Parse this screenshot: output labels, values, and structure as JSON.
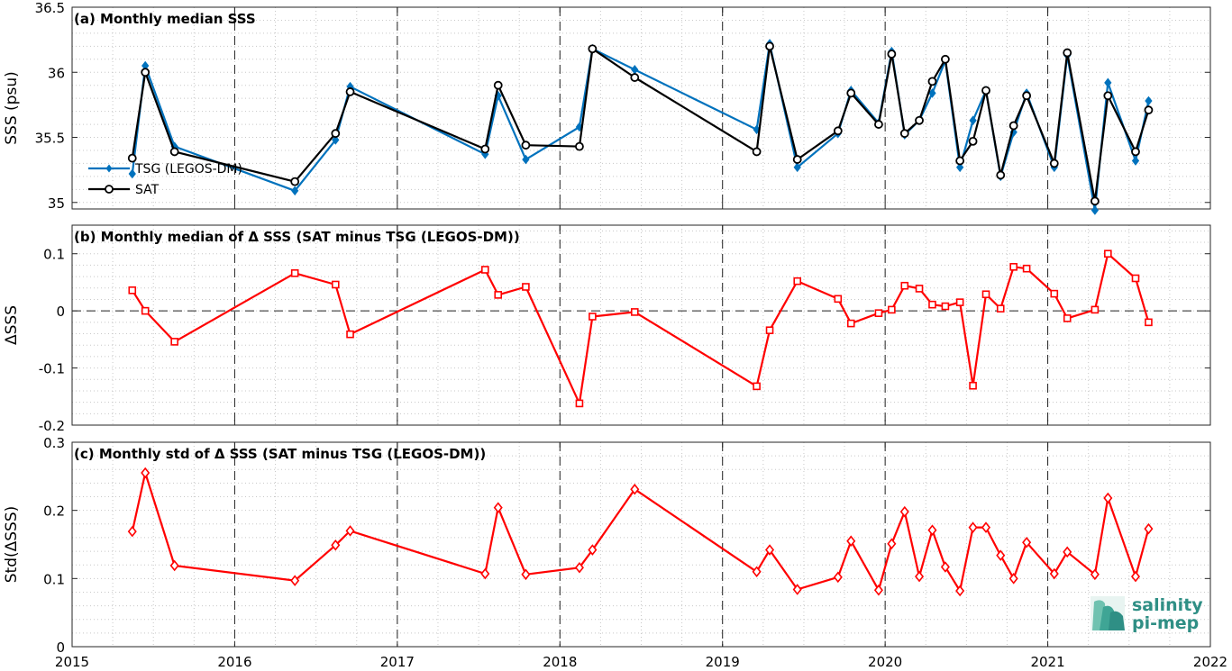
{
  "chart_data": [
    {
      "type": "line",
      "title": "(a) Monthly median SSS",
      "xlabel": "",
      "ylabel": "SSS (psu)",
      "xlim": [
        2015,
        2022
      ],
      "ylim": [
        34.95,
        36.5
      ],
      "yticks": [
        35,
        35.5,
        36,
        36.5
      ],
      "yticklabels": [
        "35",
        "35.5",
        "36",
        "36.5"
      ],
      "grid": true,
      "legend_position": "left",
      "series": [
        {
          "name": "TSG (LEGOS-DM)",
          "color": "#0072BD",
          "marker": "filled-diamond",
          "x": [
            2015.37,
            2015.45,
            2015.63,
            2016.37,
            2016.62,
            2016.71,
            2017.54,
            2017.62,
            2017.79,
            2018.12,
            2018.2,
            2018.46,
            2019.21,
            2019.29,
            2019.46,
            2019.71,
            2019.79,
            2019.96,
            2020.04,
            2020.12,
            2020.21,
            2020.29,
            2020.37,
            2020.46,
            2020.54,
            2020.62,
            2020.71,
            2020.79,
            2020.87,
            2021.04,
            2021.12,
            2021.29,
            2021.37,
            2021.54,
            2021.62
          ],
          "y": [
            35.22,
            36.05,
            35.43,
            35.09,
            35.48,
            35.89,
            35.37,
            35.82,
            35.33,
            35.58,
            36.18,
            36.02,
            35.56,
            36.22,
            35.27,
            35.53,
            35.86,
            35.61,
            36.16,
            35.52,
            35.63,
            35.84,
            36.09,
            35.27,
            35.63,
            35.86,
            35.2,
            35.54,
            35.84,
            35.27,
            36.13,
            34.94,
            35.92,
            35.32,
            35.78
          ]
        },
        {
          "name": "SAT",
          "color": "#000000",
          "marker": "open-circle",
          "x": [
            2015.37,
            2015.45,
            2015.63,
            2016.37,
            2016.62,
            2016.71,
            2017.54,
            2017.62,
            2017.79,
            2018.12,
            2018.2,
            2018.46,
            2019.21,
            2019.29,
            2019.46,
            2019.71,
            2019.79,
            2019.96,
            2020.04,
            2020.12,
            2020.21,
            2020.29,
            2020.37,
            2020.46,
            2020.54,
            2020.62,
            2020.71,
            2020.79,
            2020.87,
            2021.04,
            2021.12,
            2021.29,
            2021.37,
            2021.54,
            2021.62
          ],
          "y": [
            35.34,
            36.0,
            35.39,
            35.16,
            35.53,
            35.85,
            35.41,
            35.9,
            35.44,
            35.43,
            36.18,
            35.96,
            35.39,
            36.2,
            35.33,
            35.55,
            35.84,
            35.6,
            36.14,
            35.53,
            35.63,
            35.93,
            36.1,
            35.32,
            35.47,
            35.86,
            35.21,
            35.59,
            35.82,
            35.3,
            36.15,
            35.01,
            35.82,
            35.39,
            35.71
          ]
        }
      ]
    },
    {
      "type": "line",
      "title": "(b) Monthly median of Δ SSS (SAT minus TSG (LEGOS-DM))",
      "xlabel": "",
      "ylabel": "ΔSSS",
      "xlim": [
        2015,
        2022
      ],
      "ylim": [
        -0.2,
        0.15
      ],
      "yticks": [
        -0.2,
        -0.1,
        0,
        0.1
      ],
      "yticklabels": [
        "-0.2",
        "-0.1",
        "0",
        "0.1"
      ],
      "grid": true,
      "reference_line": 0,
      "series": [
        {
          "name": "",
          "color": "#FF0000",
          "marker": "open-square",
          "x": [
            2015.37,
            2015.45,
            2015.63,
            2016.37,
            2016.62,
            2016.71,
            2017.54,
            2017.62,
            2017.79,
            2018.12,
            2018.2,
            2018.46,
            2019.21,
            2019.29,
            2019.46,
            2019.71,
            2019.79,
            2019.96,
            2020.04,
            2020.12,
            2020.21,
            2020.29,
            2020.37,
            2020.46,
            2020.54,
            2020.62,
            2020.71,
            2020.79,
            2020.87,
            2021.04,
            2021.12,
            2021.29,
            2021.37,
            2021.54,
            2021.62
          ],
          "y": [
            0.036,
            0.0,
            -0.054,
            0.066,
            0.046,
            -0.041,
            0.072,
            0.028,
            0.042,
            -0.162,
            -0.01,
            -0.002,
            -0.132,
            -0.034,
            0.052,
            0.021,
            -0.022,
            -0.004,
            0.002,
            0.044,
            0.039,
            0.011,
            0.008,
            0.015,
            -0.131,
            0.029,
            0.004,
            0.077,
            0.074,
            0.03,
            -0.013,
            0.002,
            0.1,
            0.057,
            -0.02
          ]
        }
      ]
    },
    {
      "type": "line",
      "title": "(c) Monthly std of Δ SSS (SAT minus TSG (LEGOS-DM))",
      "xlabel": "",
      "ylabel": "Std(ΔSSS)",
      "xlim": [
        2015,
        2022
      ],
      "ylim": [
        0,
        0.3
      ],
      "xticks": [
        2015,
        2016,
        2017,
        2018,
        2019,
        2020,
        2021,
        2022
      ],
      "xticklabels": [
        "2015",
        "2016",
        "2017",
        "2018",
        "2019",
        "2020",
        "2021",
        "2022"
      ],
      "yticks": [
        0,
        0.1,
        0.2,
        0.3
      ],
      "yticklabels": [
        "0",
        "0.1",
        "0.2",
        "0.3"
      ],
      "grid": true,
      "series": [
        {
          "name": "",
          "color": "#FF0000",
          "marker": "open-diamond",
          "x": [
            2015.37,
            2015.45,
            2015.63,
            2016.37,
            2016.62,
            2016.71,
            2017.54,
            2017.62,
            2017.79,
            2018.12,
            2018.2,
            2018.46,
            2019.21,
            2019.29,
            2019.46,
            2019.71,
            2019.79,
            2019.96,
            2020.04,
            2020.12,
            2020.21,
            2020.29,
            2020.37,
            2020.46,
            2020.54,
            2020.62,
            2020.71,
            2020.79,
            2020.87,
            2021.04,
            2021.12,
            2021.29,
            2021.37,
            2021.54,
            2021.62
          ],
          "y": [
            0.169,
            0.255,
            0.119,
            0.097,
            0.149,
            0.17,
            0.107,
            0.204,
            0.106,
            0.116,
            0.142,
            0.231,
            0.11,
            0.142,
            0.084,
            0.102,
            0.155,
            0.083,
            0.151,
            0.198,
            0.103,
            0.171,
            0.117,
            0.082,
            0.175,
            0.175,
            0.134,
            0.1,
            0.153,
            0.107,
            0.139,
            0.106,
            0.218,
            0.103,
            0.173
          ]
        }
      ]
    }
  ],
  "logo": {
    "line1": "salinity",
    "line2": "pi-mep",
    "color": "#2f8f85"
  }
}
